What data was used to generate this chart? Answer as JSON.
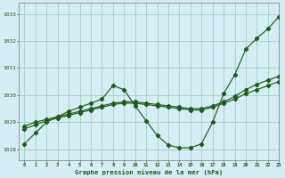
{
  "title": "Graphe pression niveau de la mer (hPa)",
  "bg_color": "#d4eef4",
  "grid_color": "#a8d4c8",
  "line_color": "#1e5c1e",
  "xlim": [
    -0.5,
    23
  ],
  "ylim": [
    1027.6,
    1033.4
  ],
  "yticks": [
    1028,
    1029,
    1030,
    1031,
    1032,
    1033
  ],
  "xticks": [
    0,
    1,
    2,
    3,
    4,
    5,
    6,
    7,
    8,
    9,
    10,
    11,
    12,
    13,
    14,
    15,
    16,
    17,
    18,
    19,
    20,
    21,
    22,
    23
  ],
  "hours": [
    0,
    1,
    2,
    3,
    4,
    5,
    6,
    7,
    8,
    9,
    10,
    11,
    12,
    13,
    14,
    15,
    16,
    17,
    18,
    19,
    20,
    21,
    22,
    23
  ],
  "line_main": [
    1028.2,
    1028.6,
    1029.0,
    1029.2,
    1029.4,
    1029.55,
    1029.7,
    1029.85,
    1030.35,
    1030.2,
    1029.6,
    1029.05,
    1028.5,
    1028.15,
    1028.05,
    1028.05,
    1028.2,
    1029.0,
    1030.05,
    1030.75,
    1031.7,
    1032.1,
    1032.45,
    1032.9
  ],
  "line_smooth1": [
    1028.85,
    1029.0,
    1029.1,
    1029.2,
    1029.3,
    1029.4,
    1029.5,
    1029.6,
    1029.7,
    1029.75,
    1029.75,
    1029.7,
    1029.65,
    1029.6,
    1029.55,
    1029.5,
    1029.5,
    1029.6,
    1029.75,
    1029.95,
    1030.2,
    1030.4,
    1030.55,
    1030.7
  ],
  "line_smooth2": [
    1028.75,
    1028.9,
    1029.05,
    1029.15,
    1029.25,
    1029.35,
    1029.45,
    1029.55,
    1029.65,
    1029.7,
    1029.7,
    1029.65,
    1029.6,
    1029.55,
    1029.5,
    1029.45,
    1029.45,
    1029.55,
    1029.7,
    1029.85,
    1030.05,
    1030.2,
    1030.35,
    1030.5
  ]
}
